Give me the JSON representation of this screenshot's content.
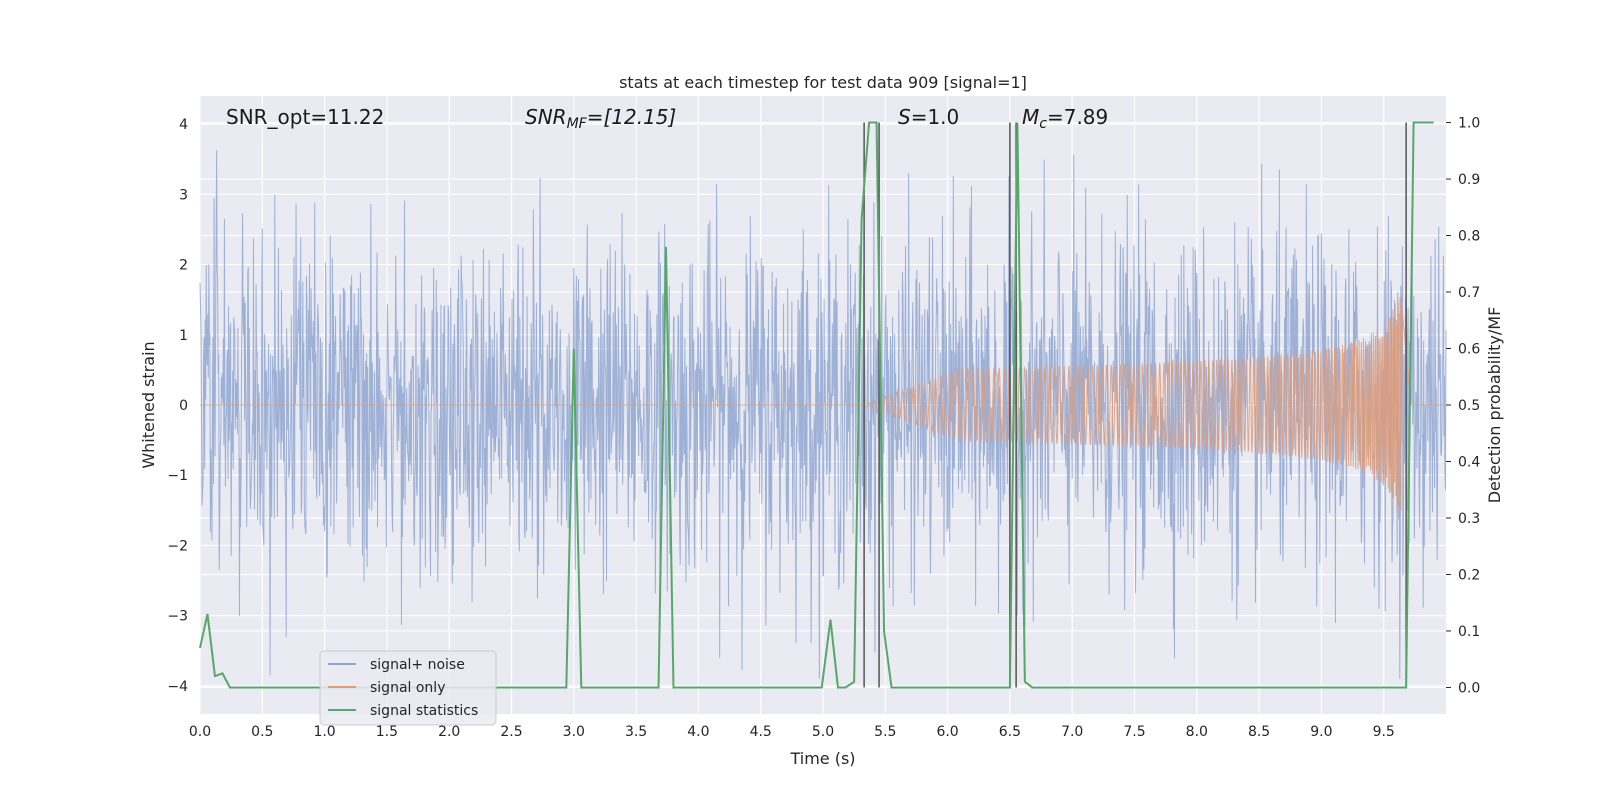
{
  "chart_data": {
    "type": "line",
    "title": "stats at each timestep for test data 909 [signal=1]",
    "xlabel": "Time (s)",
    "ylabel": "Whitened strain",
    "y2label": "Detection probability/MF",
    "xlim": [
      0.0,
      10.0
    ],
    "ylim": [
      -4.4,
      4.4
    ],
    "y2lim": [
      -0.047,
      1.047
    ],
    "x_ticks": [
      "0.0",
      "0.5",
      "1.0",
      "1.5",
      "2.0",
      "2.5",
      "3.0",
      "3.5",
      "4.0",
      "4.5",
      "5.0",
      "5.5",
      "6.0",
      "6.5",
      "7.0",
      "7.5",
      "8.0",
      "8.5",
      "9.0",
      "9.5"
    ],
    "y_ticks": [
      "4",
      "3",
      "2",
      "1",
      "0",
      "−1",
      "−2",
      "−3",
      "−4"
    ],
    "y2_ticks": [
      "1.0",
      "0.9",
      "0.8",
      "0.7",
      "0.6",
      "0.5",
      "0.4",
      "0.3",
      "0.2",
      "0.1",
      "0.0"
    ],
    "grid": true,
    "legend": {
      "placement": "lower-left",
      "entries": [
        {
          "label": "signal+ noise",
          "color": "#8fa6d1"
        },
        {
          "label": "signal only",
          "color": "#dd9b7a"
        },
        {
          "label": "signal statistics",
          "color": "#55a868"
        }
      ]
    },
    "annotations": {
      "snr_opt": "SNR_opt=11.22",
      "snr_mf_main": "SNR",
      "snr_mf_sub": "MF",
      "snr_mf_value": "=[12.15]",
      "s_main": "S",
      "s_value": "=1.0",
      "mc_main": "M",
      "mc_sub": "c",
      "mc_value": "=7.89"
    },
    "series": [
      {
        "name": "signal+ noise",
        "color": "#8fa6d1",
        "axis": "left",
        "description_level": "gaussian noise, std≈1.2, peaks to about ±4"
      },
      {
        "name": "signal only",
        "color": "#dd9b7a",
        "axis": "left",
        "chirp": {
          "start": 5.3,
          "merger": 9.65,
          "peak_amplitude": 1.6,
          "end": 9.72
        }
      },
      {
        "name": "signal statistics",
        "color": "#55a868",
        "axis": "right",
        "x": [
          0.0,
          0.06,
          0.12,
          0.18,
          0.24,
          2.94,
          3.0,
          3.06,
          3.68,
          3.74,
          3.8,
          4.99,
          5.06,
          5.12,
          5.18,
          5.25,
          5.31,
          5.37,
          5.43,
          5.49,
          5.55,
          6.5,
          6.56,
          6.62,
          6.68,
          9.68,
          9.74,
          9.9
        ],
        "y": [
          0.07,
          0.13,
          0.02,
          0.025,
          0.0,
          0.0,
          0.6,
          0.0,
          0.0,
          0.78,
          0.0,
          0.0,
          0.12,
          0.0,
          0.0,
          0.01,
          0.83,
          1.0,
          1.0,
          0.1,
          0.0,
          0.0,
          1.0,
          0.01,
          0.0,
          0.0,
          1.0,
          1.0
        ]
      }
    ],
    "vertical_markers": {
      "color": "#555555",
      "x": [
        5.33,
        5.45,
        6.5,
        6.55,
        9.68
      ]
    }
  }
}
